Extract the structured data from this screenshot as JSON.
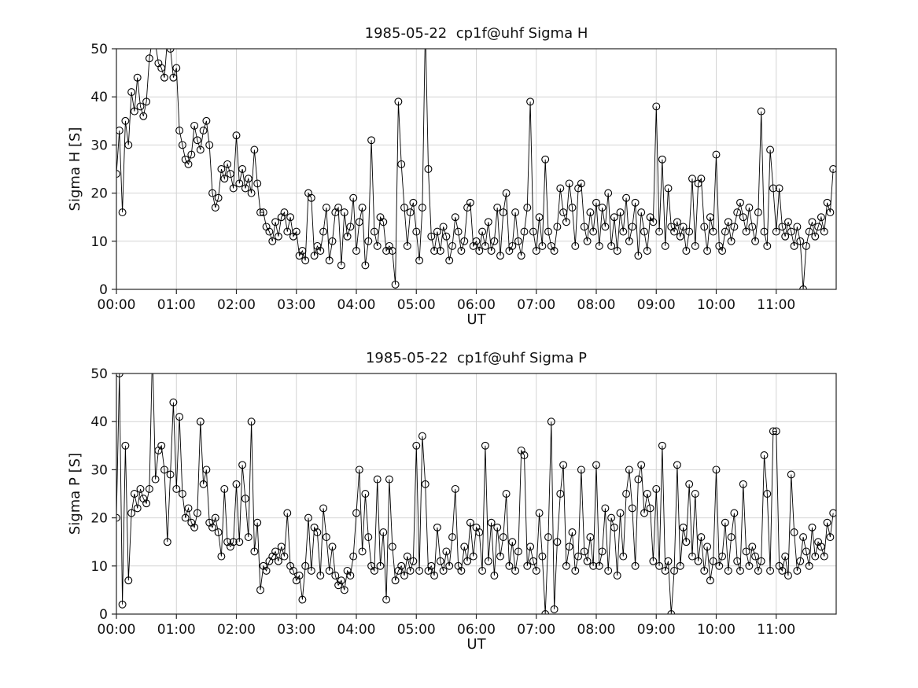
{
  "figure": {
    "background": "#ffffff",
    "line_color": "#000000",
    "grid_color": "#d4d4d4",
    "axis_color": "#262626"
  },
  "chart_data": [
    {
      "type": "line",
      "title": "1985-05-22  cp1f@uhf Sigma H",
      "ylabel": "Sigma H [S]",
      "xlabel": "UT",
      "ylim": [
        0,
        50
      ],
      "xlim_hours": [
        0,
        12
      ],
      "y_ticks": [
        0,
        10,
        20,
        30,
        40,
        50
      ],
      "x_ticks_hours": [
        0,
        1,
        2,
        3,
        4,
        5,
        6,
        7,
        8,
        9,
        10,
        11
      ],
      "x_tick_labels": [
        "00:00",
        "01:00",
        "02:00",
        "03:00",
        "04:00",
        "05:00",
        "06:00",
        "07:00",
        "08:00",
        "09:00",
        "10:00",
        "11:00"
      ],
      "grid": true,
      "marker": "open-circle",
      "x_step_minutes": 3,
      "values": [
        24,
        33,
        16,
        35,
        30,
        41,
        37,
        44,
        38,
        36,
        39,
        48,
        52,
        51,
        47,
        46,
        44,
        52,
        50,
        44,
        46,
        33,
        30,
        27,
        26,
        28,
        34,
        31,
        29,
        33,
        35,
        30,
        20,
        17,
        19,
        25,
        23,
        26,
        24,
        21,
        32,
        22,
        25,
        21,
        23,
        20,
        29,
        22,
        16,
        16,
        13,
        12,
        10,
        14,
        11,
        15,
        16,
        12,
        15,
        11,
        12,
        7,
        8,
        6,
        20,
        19,
        7,
        9,
        8,
        12,
        17,
        6,
        10,
        16,
        17,
        5,
        16,
        11,
        13,
        19,
        8,
        14,
        17,
        5,
        10,
        31,
        12,
        9,
        15,
        14,
        8,
        9,
        8,
        1,
        39,
        26,
        17,
        9,
        16,
        18,
        12,
        6,
        17,
        55,
        25,
        11,
        8,
        12,
        8,
        13,
        11,
        6,
        9,
        15,
        12,
        8,
        10,
        17,
        18,
        9,
        10,
        8,
        12,
        9,
        14,
        8,
        10,
        17,
        7,
        16,
        20,
        8,
        9,
        16,
        10,
        7,
        12,
        17,
        39,
        12,
        8,
        15,
        9,
        27,
        12,
        9,
        8,
        13,
        21,
        16,
        14,
        22,
        17,
        9,
        21,
        22,
        13,
        10,
        16,
        12,
        18,
        9,
        17,
        13,
        20,
        9,
        15,
        8,
        16,
        12,
        19,
        10,
        13,
        18,
        7,
        16,
        12,
        8,
        15,
        14,
        38,
        12,
        27,
        9,
        21,
        13,
        12,
        14,
        11,
        13,
        8,
        12,
        23,
        9,
        22,
        23,
        13,
        8,
        15,
        12,
        28,
        9,
        8,
        12,
        14,
        10,
        13,
        16,
        18,
        15,
        12,
        17,
        13,
        10,
        16,
        37,
        12,
        9,
        29,
        21,
        12,
        21,
        13,
        11,
        14,
        12,
        9,
        13,
        10,
        0,
        9,
        12,
        14,
        11,
        13,
        15,
        12,
        18,
        16,
        25
      ]
    },
    {
      "type": "line",
      "title": "1985-05-22  cp1f@uhf Sigma P",
      "ylabel": "Sigma P [S]",
      "xlabel": "UT",
      "ylim": [
        0,
        50
      ],
      "xlim_hours": [
        0,
        12
      ],
      "y_ticks": [
        0,
        10,
        20,
        30,
        40,
        50
      ],
      "x_ticks_hours": [
        0,
        1,
        2,
        3,
        4,
        5,
        6,
        7,
        8,
        9,
        10,
        11
      ],
      "x_tick_labels": [
        "00:00",
        "01:00",
        "02:00",
        "03:00",
        "04:00",
        "05:00",
        "06:00",
        "07:00",
        "08:00",
        "09:00",
        "10:00",
        "11:00"
      ],
      "grid": true,
      "marker": "open-circle",
      "x_step_minutes": 3,
      "values": [
        20,
        50,
        2,
        35,
        7,
        21,
        25,
        22,
        26,
        24,
        23,
        26,
        55,
        28,
        34,
        35,
        30,
        15,
        29,
        44,
        26,
        41,
        25,
        20,
        22,
        19,
        18,
        21,
        40,
        27,
        30,
        19,
        18,
        20,
        17,
        12,
        26,
        15,
        14,
        15,
        27,
        15,
        31,
        24,
        16,
        40,
        13,
        19,
        5,
        10,
        9,
        11,
        12,
        13,
        11,
        14,
        12,
        21,
        10,
        9,
        7,
        8,
        3,
        10,
        20,
        9,
        18,
        17,
        8,
        22,
        16,
        9,
        14,
        8,
        6,
        7,
        5,
        9,
        8,
        12,
        21,
        30,
        13,
        25,
        16,
        10,
        9,
        28,
        10,
        17,
        3,
        28,
        14,
        7,
        9,
        10,
        8,
        12,
        9,
        11,
        35,
        9,
        37,
        27,
        9,
        10,
        8,
        18,
        11,
        9,
        13,
        10,
        16,
        26,
        10,
        9,
        14,
        11,
        19,
        12,
        18,
        17,
        9,
        35,
        11,
        19,
        8,
        18,
        12,
        16,
        25,
        10,
        15,
        9,
        13,
        34,
        33,
        10,
        14,
        11,
        9,
        21,
        12,
        0,
        16,
        40,
        1,
        15,
        25,
        31,
        10,
        14,
        17,
        9,
        12,
        30,
        13,
        11,
        16,
        10,
        31,
        10,
        13,
        22,
        9,
        20,
        18,
        8,
        21,
        12,
        25,
        30,
        22,
        10,
        28,
        31,
        21,
        25,
        22,
        11,
        26,
        10,
        35,
        9,
        11,
        0,
        9,
        31,
        10,
        18,
        15,
        27,
        12,
        25,
        11,
        16,
        9,
        14,
        7,
        11,
        30,
        10,
        12,
        19,
        9,
        16,
        21,
        11,
        9,
        27,
        13,
        10,
        14,
        12,
        9,
        11,
        33,
        25,
        9,
        38,
        38,
        10,
        9,
        12,
        8,
        29,
        17,
        9,
        11,
        16,
        13,
        10,
        18,
        12,
        15,
        14,
        12,
        19,
        16,
        21
      ]
    }
  ]
}
